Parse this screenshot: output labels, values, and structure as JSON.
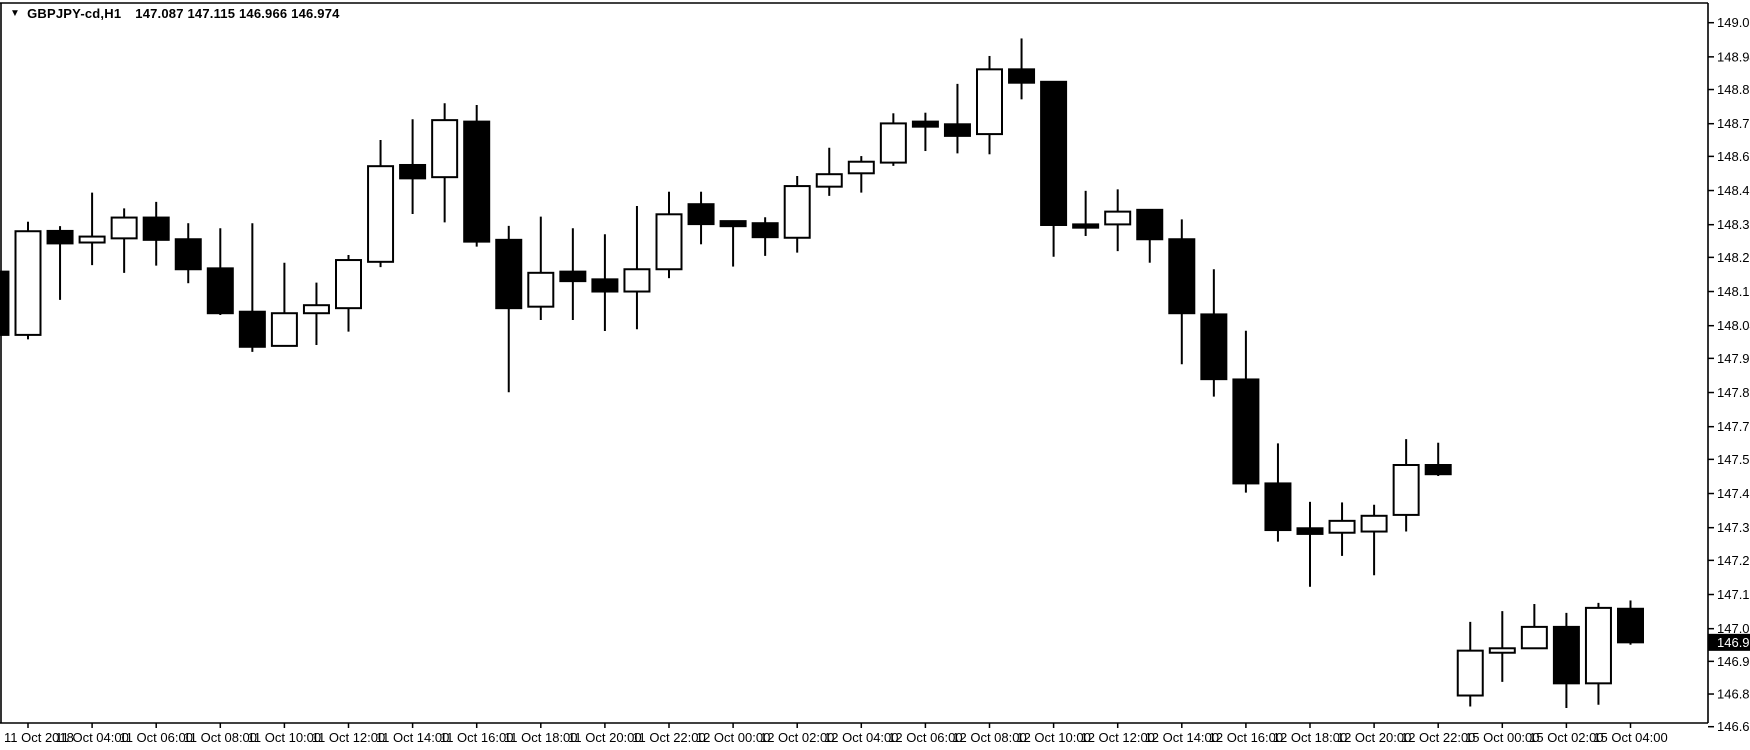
{
  "header": {
    "dropdown_icon": "▼",
    "symbol_period": "GBPJPY-cd,H1",
    "ohlc_summary": "147.087 147.115 146.966 146.974"
  },
  "colors": {
    "background": "#ffffff",
    "foreground": "#000000",
    "bull_fill": "#ffffff",
    "bear_fill": "#000000",
    "badge_bg": "#000000",
    "badge_fg": "#ffffff"
  },
  "price_axis": {
    "labels": [
      "149.060",
      "148.945",
      "148.835",
      "148.720",
      "148.610",
      "148.495",
      "148.380",
      "148.270",
      "148.155",
      "148.040",
      "147.930",
      "147.815",
      "147.700",
      "147.590",
      "147.475",
      "147.360",
      "147.250",
      "147.135",
      "147.020",
      "146.910",
      "146.800",
      "146.690"
    ],
    "current_price": "146.974"
  },
  "time_axis": {
    "labels": [
      {
        "text": "11 Oct 2018",
        "i": 0
      },
      {
        "text": "11 Oct 04:00",
        "i": 2
      },
      {
        "text": "11 Oct 06:00",
        "i": 4
      },
      {
        "text": "11 Oct 08:00",
        "i": 6
      },
      {
        "text": "11 Oct 10:00",
        "i": 8
      },
      {
        "text": "11 Oct 12:00",
        "i": 10
      },
      {
        "text": "11 Oct 14:00",
        "i": 12
      },
      {
        "text": "11 Oct 16:00",
        "i": 14
      },
      {
        "text": "11 Oct 18:00",
        "i": 16
      },
      {
        "text": "11 Oct 20:00",
        "i": 18
      },
      {
        "text": "11 Oct 22:00",
        "i": 20
      },
      {
        "text": "12 Oct 00:00",
        "i": 22
      },
      {
        "text": "12 Oct 02:00",
        "i": 24
      },
      {
        "text": "12 Oct 04:00",
        "i": 26
      },
      {
        "text": "12 Oct 06:00",
        "i": 28
      },
      {
        "text": "12 Oct 08:00",
        "i": 30
      },
      {
        "text": "12 Oct 10:00",
        "i": 32
      },
      {
        "text": "12 Oct 12:00",
        "i": 34
      },
      {
        "text": "12 Oct 14:00",
        "i": 36
      },
      {
        "text": "12 Oct 16:00",
        "i": 38
      },
      {
        "text": "12 Oct 18:00",
        "i": 40
      },
      {
        "text": "12 Oct 20:00",
        "i": 42
      },
      {
        "text": "12 Oct 22:00",
        "i": 44
      },
      {
        "text": "15 Oct 00:00",
        "i": 46
      },
      {
        "text": "15 Oct 02:00",
        "i": 48
      },
      {
        "text": "15 Oct 04:00",
        "i": 50
      }
    ]
  },
  "chart_data": {
    "type": "candlestick",
    "symbol": "GBPJPY-cd",
    "timeframe": "H1",
    "title": "GBPJPY-cd,H1  147.087 147.115 146.966 146.974",
    "ylim": [
      146.69,
      149.06
    ],
    "grid": false,
    "legend": false,
    "current_price": 146.974,
    "candles": [
      {
        "t": "11 Oct 01:00",
        "o": 148.222,
        "h": 148.272,
        "l": 147.953,
        "c": 148.009
      },
      {
        "t": "11 Oct 02:00",
        "o": 148.009,
        "h": 148.39,
        "l": 147.994,
        "c": 148.358
      },
      {
        "t": "11 Oct 03:00",
        "o": 148.359,
        "h": 148.375,
        "l": 148.127,
        "c": 148.317
      },
      {
        "t": "11 Oct 04:00",
        "o": 148.32,
        "h": 148.488,
        "l": 148.244,
        "c": 148.34
      },
      {
        "t": "11 Oct 05:00",
        "o": 148.334,
        "h": 148.435,
        "l": 148.218,
        "c": 148.404
      },
      {
        "t": "11 Oct 06:00",
        "o": 148.404,
        "h": 148.457,
        "l": 148.242,
        "c": 148.329
      },
      {
        "t": "11 Oct 07:00",
        "o": 148.331,
        "h": 148.385,
        "l": 148.183,
        "c": 148.23
      },
      {
        "t": "11 Oct 08:00",
        "o": 148.233,
        "h": 148.368,
        "l": 148.076,
        "c": 148.082
      },
      {
        "t": "11 Oct 09:00",
        "o": 148.087,
        "h": 148.385,
        "l": 147.952,
        "c": 147.969
      },
      {
        "t": "11 Oct 10:00",
        "o": 147.972,
        "h": 148.252,
        "l": 147.97,
        "c": 148.082
      },
      {
        "t": "11 Oct 11:00",
        "o": 148.082,
        "h": 148.185,
        "l": 147.975,
        "c": 148.109
      },
      {
        "t": "11 Oct 12:00",
        "o": 148.099,
        "h": 148.278,
        "l": 148.02,
        "c": 148.261
      },
      {
        "t": "11 Oct 13:00",
        "o": 148.255,
        "h": 148.665,
        "l": 148.237,
        "c": 148.577
      },
      {
        "t": "11 Oct 14:00",
        "o": 148.581,
        "h": 148.735,
        "l": 148.416,
        "c": 148.536
      },
      {
        "t": "11 Oct 15:00",
        "o": 148.54,
        "h": 148.789,
        "l": 148.388,
        "c": 148.732
      },
      {
        "t": "11 Oct 16:00",
        "o": 148.727,
        "h": 148.783,
        "l": 148.306,
        "c": 148.323
      },
      {
        "t": "11 Oct 17:00",
        "o": 148.329,
        "h": 148.376,
        "l": 147.816,
        "c": 148.099
      },
      {
        "t": "11 Oct 18:00",
        "o": 148.104,
        "h": 148.407,
        "l": 148.059,
        "c": 148.218
      },
      {
        "t": "11 Oct 19:00",
        "o": 148.222,
        "h": 148.368,
        "l": 148.059,
        "c": 148.19
      },
      {
        "t": "11 Oct 20:00",
        "o": 148.196,
        "h": 148.348,
        "l": 148.022,
        "c": 148.155
      },
      {
        "t": "11 Oct 21:00",
        "o": 148.155,
        "h": 148.443,
        "l": 148.028,
        "c": 148.23
      },
      {
        "t": "11 Oct 22:00",
        "o": 148.23,
        "h": 148.491,
        "l": 148.2,
        "c": 148.415
      },
      {
        "t": "11 Oct 23:00",
        "o": 148.449,
        "h": 148.491,
        "l": 148.314,
        "c": 148.382
      },
      {
        "t": "12 Oct 00:00",
        "o": 148.392,
        "h": 148.392,
        "l": 148.239,
        "c": 148.375
      },
      {
        "t": "12 Oct 01:00",
        "o": 148.385,
        "h": 148.405,
        "l": 148.275,
        "c": 148.338
      },
      {
        "t": "12 Oct 02:00",
        "o": 148.336,
        "h": 148.544,
        "l": 148.286,
        "c": 148.51
      },
      {
        "t": "12 Oct 03:00",
        "o": 148.508,
        "h": 148.639,
        "l": 148.477,
        "c": 148.55
      },
      {
        "t": "12 Oct 04:00",
        "o": 148.553,
        "h": 148.611,
        "l": 148.488,
        "c": 148.592
      },
      {
        "t": "12 Oct 05:00",
        "o": 148.589,
        "h": 148.755,
        "l": 148.578,
        "c": 148.721
      },
      {
        "t": "12 Oct 06:00",
        "o": 148.727,
        "h": 148.757,
        "l": 148.628,
        "c": 148.71
      },
      {
        "t": "12 Oct 07:00",
        "o": 148.718,
        "h": 148.854,
        "l": 148.62,
        "c": 148.679
      },
      {
        "t": "12 Oct 08:00",
        "o": 148.685,
        "h": 148.948,
        "l": 148.617,
        "c": 148.903
      },
      {
        "t": "12 Oct 09:00",
        "o": 148.903,
        "h": 149.007,
        "l": 148.802,
        "c": 148.858
      },
      {
        "t": "12 Oct 10:00",
        "o": 148.861,
        "h": 148.861,
        "l": 148.272,
        "c": 148.379
      },
      {
        "t": "12 Oct 11:00",
        "o": 148.381,
        "h": 148.494,
        "l": 148.342,
        "c": 148.37
      },
      {
        "t": "12 Oct 12:00",
        "o": 148.381,
        "h": 148.499,
        "l": 148.291,
        "c": 148.424
      },
      {
        "t": "12 Oct 13:00",
        "o": 148.43,
        "h": 148.43,
        "l": 148.252,
        "c": 148.331
      },
      {
        "t": "12 Oct 14:00",
        "o": 148.331,
        "h": 148.398,
        "l": 147.91,
        "c": 148.082
      },
      {
        "t": "12 Oct 15:00",
        "o": 148.078,
        "h": 148.23,
        "l": 147.801,
        "c": 147.86
      },
      {
        "t": "12 Oct 16:00",
        "o": 147.859,
        "h": 148.023,
        "l": 147.478,
        "c": 147.509
      },
      {
        "t": "12 Oct 17:00",
        "o": 147.509,
        "h": 147.644,
        "l": 147.313,
        "c": 147.352
      },
      {
        "t": "12 Oct 18:00",
        "o": 147.358,
        "h": 147.447,
        "l": 147.161,
        "c": 147.339
      },
      {
        "t": "12 Oct 19:00",
        "o": 147.343,
        "h": 147.445,
        "l": 147.265,
        "c": 147.383
      },
      {
        "t": "12 Oct 20:00",
        "o": 147.347,
        "h": 147.437,
        "l": 147.2,
        "c": 147.4
      },
      {
        "t": "12 Oct 21:00",
        "o": 147.403,
        "h": 147.658,
        "l": 147.347,
        "c": 147.571
      },
      {
        "t": "12 Oct 22:00",
        "o": 147.571,
        "h": 147.646,
        "l": 147.534,
        "c": 147.54
      },
      {
        "t": "12 Oct 23:00",
        "o": 146.795,
        "h": 147.043,
        "l": 146.758,
        "c": 146.946
      },
      {
        "t": "15 Oct 00:00",
        "o": 146.939,
        "h": 147.079,
        "l": 146.841,
        "c": 146.954
      },
      {
        "t": "15 Oct 01:00",
        "o": 146.954,
        "h": 147.103,
        "l": 146.954,
        "c": 147.026
      },
      {
        "t": "15 Oct 02:00",
        "o": 147.026,
        "h": 147.073,
        "l": 146.753,
        "c": 146.836
      },
      {
        "t": "15 Oct 03:00",
        "o": 146.836,
        "h": 147.107,
        "l": 146.764,
        "c": 147.09
      },
      {
        "t": "15 Oct 04:00",
        "o": 147.087,
        "h": 147.115,
        "l": 146.966,
        "c": 146.974
      }
    ]
  }
}
